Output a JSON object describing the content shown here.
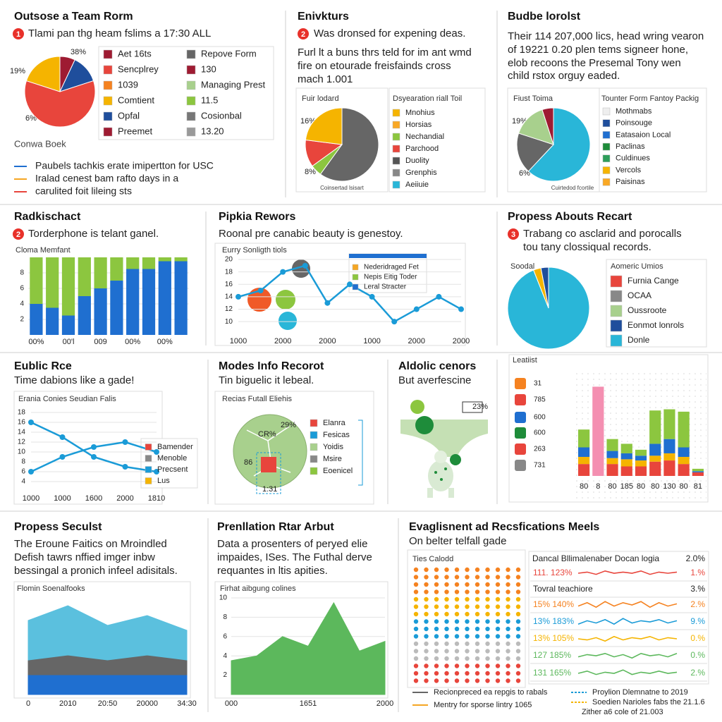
{
  "chart_data": [
    {
      "type": "pie",
      "title": "Outsose a Team Rorm",
      "badge": "1",
      "text": [
        "Tlami pan thg heam fslims a 17:30 ALL"
      ],
      "values": [
        7,
        13,
        60,
        20
      ],
      "colors": [
        "#9e1b32",
        "#1f4e9c",
        "#e8453c",
        "#f5b400"
      ],
      "annotations": [
        "38%",
        "19%",
        "6%"
      ],
      "legend": [
        {
          "name": "Aet 16ts",
          "color": "#9e1b32"
        },
        {
          "name": "Sencplrey",
          "color": "#e8453c"
        },
        {
          "name": "1039",
          "color": "#f58220"
        },
        {
          "name": "Comtient",
          "color": "#f5b400"
        },
        {
          "name": "Opfal",
          "color": "#1f4e9c"
        },
        {
          "name": "Preemet",
          "color": "#9e1b32"
        },
        {
          "name": "Repove Form",
          "color": "#666666"
        },
        {
          "name": "130",
          "color": "#9e1b32"
        },
        {
          "name": "Managing Prest",
          "color": "#a8d08d"
        },
        {
          "name": "11.5",
          "color": "#8cc63f"
        },
        {
          "name": "Cosionbal",
          "color": "#777777"
        },
        {
          "name": "13.20",
          "color": "#999999"
        }
      ],
      "footer": "Conwa Boek",
      "line_legend": [
        {
          "name": "Paubels tachkis erate imipertton for USC",
          "color": "#1f6fd0"
        },
        {
          "name": "Iralad cenest bam rafto days in a",
          "color": "#f5a623"
        },
        {
          "name": "carulited foit lileing sts",
          "color": "#e8453c"
        }
      ]
    },
    {
      "type": "pie",
      "title": "Enivkturs",
      "badge": "2",
      "text": [
        "Was dronsed for expening deas.",
        "Furl lt a buns thrs teld for im ant wmd",
        "fire on etourade freisfainds cross",
        "mach 1.001"
      ],
      "chart_title": "Fuir lodard",
      "values": [
        60,
        5,
        12,
        23
      ],
      "colors": [
        "#666666",
        "#8cc63f",
        "#e8453c",
        "#f5b400"
      ],
      "annotations": [
        "16%",
        "8%"
      ],
      "footer": "Coinsertad lsisart",
      "legend_title": "Dsyearation riall Toil",
      "legend": [
        {
          "name": "Mnohius",
          "color": "#f5b400"
        },
        {
          "name": "Horsias",
          "color": "#f9a825"
        },
        {
          "name": "Nechandial",
          "color": "#8cc63f"
        },
        {
          "name": "Parchood",
          "color": "#e8453c"
        },
        {
          "name": "Duolity",
          "color": "#555555"
        },
        {
          "name": "Grenphis",
          "color": "#888888"
        },
        {
          "name": "Aeiiuie",
          "color": "#29b6d8"
        }
      ]
    },
    {
      "type": "pie",
      "title": "Budbe lorolst",
      "text": [
        "Their 114 207,000 lics, head wring vearon",
        "of 19221 0.20 plen tems signeer hone,",
        "elob recoons the Presemal Tony wen",
        "child rstox orguy eaded."
      ],
      "chart_title": "Fiust Toima",
      "values": [
        62,
        18,
        15,
        5
      ],
      "colors": [
        "#29b6d8",
        "#666666",
        "#a8d08d",
        "#9e1b32"
      ],
      "annotations": [
        "19%",
        "6%"
      ],
      "footer": "Cuirtedod fcortile",
      "legend_title": "Tounter Form Fantoy Packig",
      "legend": [
        {
          "name": "Mothmabs",
          "color": "#eeeeee"
        },
        {
          "name": "Poinsouge",
          "color": "#1f4e9c"
        },
        {
          "name": "Eatasaion Local",
          "color": "#1f6fd0"
        },
        {
          "name": "Paclinas",
          "color": "#1e8c3a"
        },
        {
          "name": "Culdinues",
          "color": "#2e9e5a"
        },
        {
          "name": "Vercols",
          "color": "#f5b400"
        },
        {
          "name": "Paisinas",
          "color": "#f9a825"
        }
      ]
    },
    {
      "type": "bar",
      "title": "Radkischact",
      "badge": "2",
      "text": [
        "Torderphone is telant ganel."
      ],
      "chart_title": "Cloma Memfant",
      "categories": [
        "00%",
        null,
        "00'l",
        null,
        "009",
        null,
        "00%",
        null,
        "00%",
        null
      ],
      "series": [
        {
          "color": "#1f6fd0",
          "values": [
            4,
            3.5,
            2.5,
            5,
            6,
            7,
            8.5,
            8.5,
            9.5,
            9.5
          ]
        },
        {
          "color": "#8cc63f",
          "values": [
            6,
            6.5,
            7.5,
            5,
            4,
            3,
            1.5,
            1.5,
            0.5,
            0.5
          ]
        }
      ],
      "ylim": [
        0,
        10
      ],
      "yticks": [
        2,
        4,
        6,
        8
      ]
    },
    {
      "type": "line",
      "title": "Pipkia Rewors",
      "text": [
        "Roonal pre canabic beauty is genestoy."
      ],
      "chart_title": "Eurry Sonligth tiols",
      "categories": [
        "1000",
        null,
        "2000",
        null,
        "2000",
        null,
        "1000",
        null,
        "2000",
        null,
        "2000"
      ],
      "series": [
        {
          "color": "#1a9bd7",
          "values": [
            14,
            15,
            18,
            19,
            13,
            16,
            14,
            10,
            12,
            14,
            12
          ]
        }
      ],
      "ylim": [
        9,
        20
      ],
      "yticks": [
        10,
        12,
        14,
        16,
        18,
        20
      ],
      "legend": [
        {
          "name": "Nederidraged Fet",
          "color": "#f5a623"
        },
        {
          "name": "Nepis Eitig Toder",
          "color": "#8cc63f"
        },
        {
          "name": "Leral Stracter",
          "color": "#1f6fd0"
        }
      ]
    },
    {
      "type": "pie",
      "title": "Propess Abouts Recart",
      "badge": "3",
      "text": [
        "Trabang co asclarid and porocalls",
        "tou tany clossiqual records."
      ],
      "chart_title": "Soodal",
      "values": [
        94,
        3,
        3
      ],
      "colors": [
        "#29b6d8",
        "#f5b400",
        "#1f4e9c"
      ],
      "legend_title": "Aomeric Umios",
      "legend": [
        {
          "name": "Furnia Cange",
          "color": "#e8453c"
        },
        {
          "name": "OCAA",
          "color": "#888888"
        },
        {
          "name": "Oussroote",
          "color": "#a8d08d"
        },
        {
          "name": "Eonmot lonrols",
          "color": "#1f4e9c"
        },
        {
          "name": "Donle",
          "color": "#29b6d8"
        }
      ]
    },
    {
      "type": "line",
      "title": "Eublic Rce",
      "text": [
        "Time dabions like a gade!"
      ],
      "chart_title": "Erania Conies Seudian Falis",
      "categories": [
        "1000",
        "1000",
        "1600",
        "2000",
        "1810"
      ],
      "series": [
        {
          "color": "#1a9bd7",
          "values": [
            16,
            13,
            9,
            7,
            6
          ]
        },
        {
          "color": "#1a9bd7",
          "values": [
            6,
            9,
            11,
            12,
            10
          ]
        }
      ],
      "ylim": [
        3,
        19
      ],
      "yticks": [
        4,
        6,
        8,
        10,
        12,
        14,
        16,
        18
      ],
      "legend": [
        {
          "name": "Bamender",
          "color": "#e8453c"
        },
        {
          "name": "Menoble",
          "color": "#888888"
        },
        {
          "name": "Precsent",
          "color": "#1a9bd7"
        },
        {
          "name": "Lus",
          "color": "#f5b400"
        }
      ]
    },
    {
      "type": "diagram",
      "title": "Modes Info Recorot",
      "text": [
        "Tin biguelic it lebeal."
      ],
      "chart_title": "Recias Futall Eliehis",
      "annotations": [
        "29%",
        "86",
        "1:31",
        "CR%"
      ],
      "legend": [
        {
          "name": "Elanra",
          "color": "#e8453c"
        },
        {
          "name": "Fesicas",
          "color": "#1a9bd7"
        },
        {
          "name": "Yoidis",
          "color": "#a8d08d"
        },
        {
          "name": "Msire",
          "color": "#888888"
        },
        {
          "name": "Eoenicel",
          "color": "#8cc63f"
        }
      ]
    },
    {
      "type": "diagram",
      "title": "Aldolic cenors",
      "text": [
        "But averfescine"
      ],
      "annotations": [
        "23%"
      ]
    },
    {
      "type": "bar",
      "chart_title": "Leatiist",
      "rows": [
        "31",
        "785",
        "600",
        "600",
        "263",
        "731"
      ],
      "categories": [
        "80",
        "8",
        "80",
        "185",
        "80",
        "80",
        "130",
        "80",
        "81"
      ],
      "series": [
        {
          "color": "#e8453c",
          "values": [
            1,
            0,
            1,
            0.8,
            0.8,
            1.2,
            1.3,
            1,
            0.3
          ]
        },
        {
          "color": "#f5b400",
          "values": [
            0.6,
            0,
            0.5,
            0.6,
            0.5,
            0.5,
            0.6,
            0.6,
            0
          ]
        },
        {
          "color": "#1f6fd0",
          "values": [
            0.8,
            0,
            0.6,
            0.5,
            0.4,
            1,
            1.2,
            0.8,
            0.1
          ]
        },
        {
          "color": "#8cc63f",
          "values": [
            1.5,
            0,
            1,
            0.8,
            0.5,
            2.8,
            2.5,
            3,
            0.2
          ]
        },
        {
          "color": "#f48fb1",
          "values": [
            0,
            7.5,
            0,
            0,
            0,
            0,
            0,
            0,
            0
          ]
        }
      ],
      "ylim": [
        0,
        8
      ]
    },
    {
      "type": "area",
      "title": "Propess Seculst",
      "text": [
        "The Eroune Faitics on Mroindled",
        "Defish tawrs nffied imger inbw",
        "bessingal a pronich infeel adisitals."
      ],
      "chart_title": "Flomin Soenalfooks",
      "categories": [
        "0",
        "2010",
        "20:50",
        "20000",
        "34:30"
      ],
      "series": [
        {
          "color": "#1f6fd0",
          "values": [
            2,
            2,
            2,
            2,
            2
          ]
        },
        {
          "color": "#666666",
          "values": [
            1.5,
            2,
            1.5,
            2,
            1.5
          ]
        },
        {
          "color": "#5bc0de",
          "values": [
            4,
            5,
            3.5,
            4,
            3
          ]
        }
      ],
      "ylim": [
        0,
        10
      ]
    },
    {
      "type": "area",
      "title": "Prenllation Rtar Arbut",
      "text": [
        "Data a prosenters of peryed elie",
        "impaides, ISes. The Futhal derve",
        "requantes in ltis apities."
      ],
      "chart_title": "Firhat aibgung colines",
      "categories": [
        "000",
        null,
        null,
        "1651",
        null,
        null,
        "2000"
      ],
      "series": [
        {
          "color": "#5cb85c",
          "values": [
            3.5,
            4,
            6,
            5,
            9.5,
            4.5,
            5.5
          ]
        }
      ],
      "ylim": [
        0,
        10
      ],
      "yticks": [
        2,
        4,
        6,
        8,
        10
      ]
    },
    {
      "type": "sparkline",
      "title": "Evaglisnent ad Recsfications Meels",
      "text": [
        "On belter telfall gade"
      ],
      "chart_title": "Ties Calodd",
      "table_title": "Dancal Bllimalenaber Docan logia",
      "table_total": "2.0%",
      "ylim": [
        0,
        10
      ],
      "rows": [
        {
          "label": "111. 123%",
          "color": "#e8453c",
          "change": "1.%",
          "values": [
            5,
            6,
            4,
            7,
            5,
            6,
            5,
            7,
            4,
            6,
            5,
            6
          ]
        },
        {
          "label": "Tovral teachiore",
          "change": "3.%"
        },
        {
          "label": "15% 140%",
          "color": "#f58220",
          "change": "2.%",
          "values": [
            4,
            7,
            3,
            8,
            4,
            7,
            5,
            8,
            3,
            7,
            4,
            6
          ]
        },
        {
          "label": "13% 183%",
          "color": "#1a9bd7",
          "change": "9.%",
          "values": [
            3,
            6,
            4,
            7,
            3,
            8,
            4,
            6,
            5,
            7,
            4,
            6
          ]
        },
        {
          "label": "13% 105%",
          "color": "#f5b400",
          "change": "0.%",
          "values": [
            5,
            4,
            6,
            3,
            7,
            4,
            6,
            5,
            7,
            4,
            6,
            5
          ]
        },
        {
          "label": "127 185%",
          "color": "#5cb85c",
          "change": "0.%",
          "values": [
            4,
            6,
            5,
            7,
            4,
            6,
            3,
            7,
            5,
            6,
            4,
            7
          ]
        },
        {
          "label": "131 165%",
          "color": "#5cb85c",
          "change": "2.%",
          "values": [
            5,
            7,
            4,
            6,
            5,
            8,
            4,
            6,
            5,
            7,
            5,
            6
          ]
        }
      ],
      "legend": [
        {
          "name": "Recionpreced ea repgis to rabals",
          "color": "#666666"
        },
        {
          "name": "Mentry for sporse lintry 1065",
          "color": "#f5a623"
        },
        {
          "name": "Proylion Dlemnatne to 2019",
          "color": "#1a9bd7"
        },
        {
          "name": "Soedien Narioles fabs the 21.1.6",
          "color": "#f5b400"
        }
      ],
      "footnote": "Zither a6 cole of 21.003"
    }
  ]
}
